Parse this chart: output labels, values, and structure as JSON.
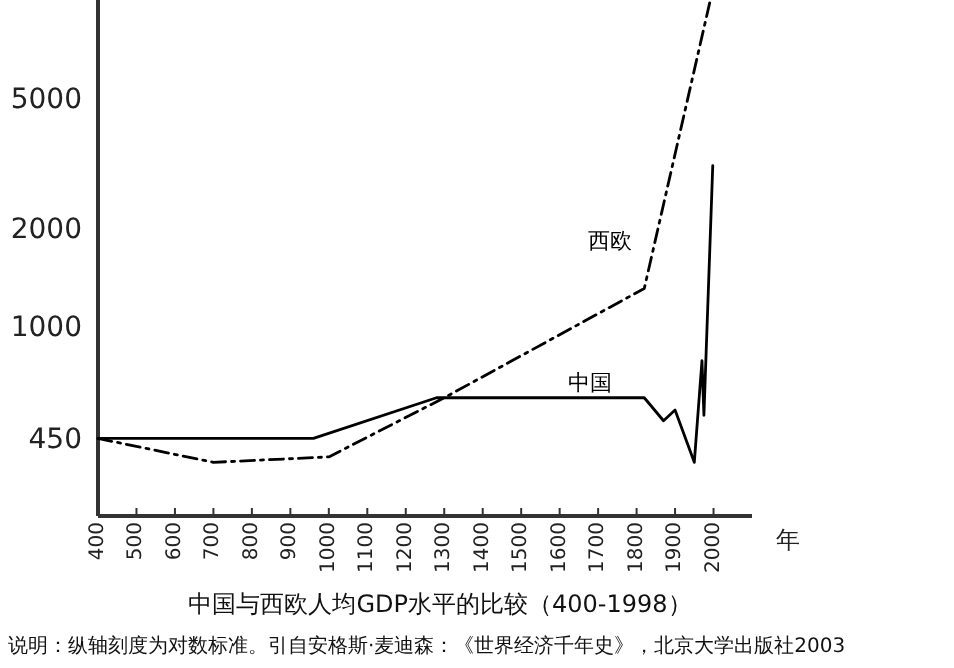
{
  "chart_data": {
    "type": "line",
    "title": "中国与西欧人均GDP水平的比较（400-1998）",
    "xlabel": "年",
    "annotations": [
      "说明：纵轴刻度为对数标准。引自安格斯·麦迪森：《世界经济千年史》，北京大学出版社2003"
    ],
    "log": "y",
    "xlim": [
      400,
      2100
    ],
    "ylim": [
      260,
      10000
    ],
    "xticks": [
      400,
      500,
      600,
      700,
      800,
      900,
      1000,
      1100,
      1200,
      1300,
      1400,
      1500,
      1600,
      1700,
      1800,
      1900,
      2000
    ],
    "yticks": [
      450,
      1000,
      2000,
      5000
    ],
    "grid": false,
    "series": [
      {
        "name": "中国",
        "color": "#000000",
        "line_style": "solid",
        "x": [
          400,
          960,
          1280,
          1300,
          1820,
          1870,
          1900,
          1950,
          1970,
          1975,
          1998
        ],
        "values": [
          450,
          450,
          600,
          600,
          600,
          510,
          550,
          380,
          780,
          530,
          3100
        ]
      },
      {
        "name": "西欧",
        "color": "#000000",
        "line_style": "dashed",
        "x": [
          400,
          700,
          1000,
          1300,
          1820,
          1990
        ],
        "values": [
          450,
          380,
          395,
          600,
          1300,
          9800
        ]
      }
    ]
  }
}
